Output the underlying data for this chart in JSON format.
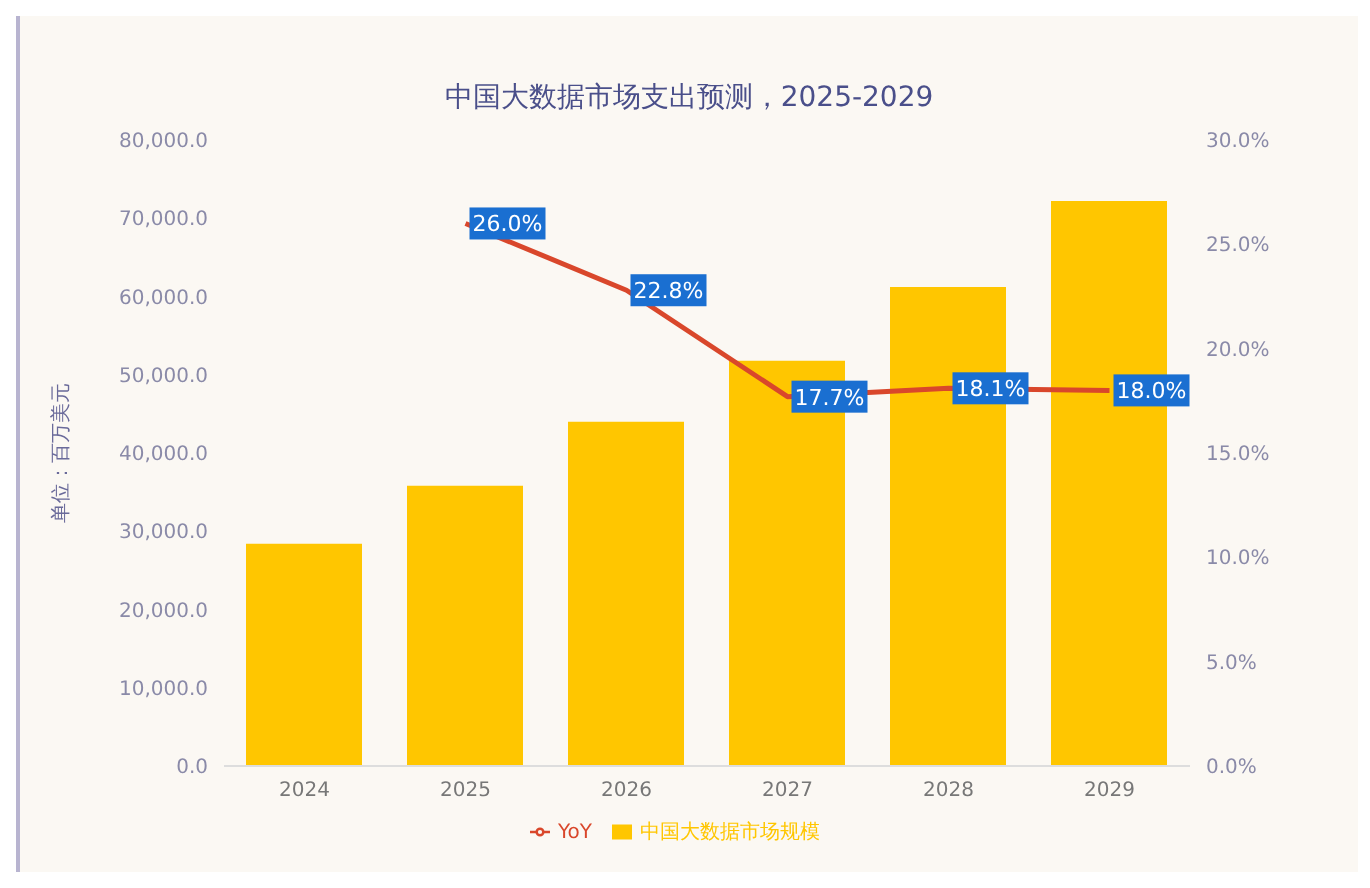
{
  "chart_data": {
    "type": "bar",
    "title": "中国大数据市场支出预测，2025-2029",
    "ylabel": "单位：百万美元",
    "categories": [
      "2024",
      "2025",
      "2026",
      "2027",
      "2028",
      "2029"
    ],
    "series": [
      {
        "name": "中国大数据市场规模",
        "color": "#ffc600",
        "values": [
          28400,
          35800,
          44000,
          51800,
          61200,
          72200
        ]
      },
      {
        "name": "YoY",
        "type": "line",
        "axis": "y2",
        "color": "#d9472b",
        "values": [
          null,
          26.0,
          22.8,
          17.7,
          18.1,
          18.0
        ],
        "value_labels": [
          null,
          "26.0%",
          "22.8%",
          "17.7%",
          "18.1%",
          "18.0%"
        ]
      }
    ],
    "ylim": [
      0,
      80000
    ],
    "yticks": [
      {
        "value": 0,
        "label": "0.0"
      },
      {
        "value": 10000,
        "label": "10,000.0"
      },
      {
        "value": 20000,
        "label": "20,000.0"
      },
      {
        "value": 30000,
        "label": "30,000.0"
      },
      {
        "value": 40000,
        "label": "40,000.0"
      },
      {
        "value": 50000,
        "label": "50,000.0"
      },
      {
        "value": 60000,
        "label": "60,000.0"
      },
      {
        "value": 70000,
        "label": "70,000.0"
      },
      {
        "value": 80000,
        "label": "80,000.0"
      }
    ],
    "y2lim": [
      0,
      30
    ],
    "y2ticks": [
      {
        "value": 0,
        "label": "0.0%"
      },
      {
        "value": 5,
        "label": "5.0%"
      },
      {
        "value": 10,
        "label": "10.0%"
      },
      {
        "value": 15,
        "label": "15.0%"
      },
      {
        "value": 20,
        "label": "20.0%"
      },
      {
        "value": 25,
        "label": "25.0%"
      },
      {
        "value": 30,
        "label": "30.0%"
      }
    ],
    "legend": "bottom",
    "grid": false,
    "marker": "none",
    "line_style": "solid"
  }
}
